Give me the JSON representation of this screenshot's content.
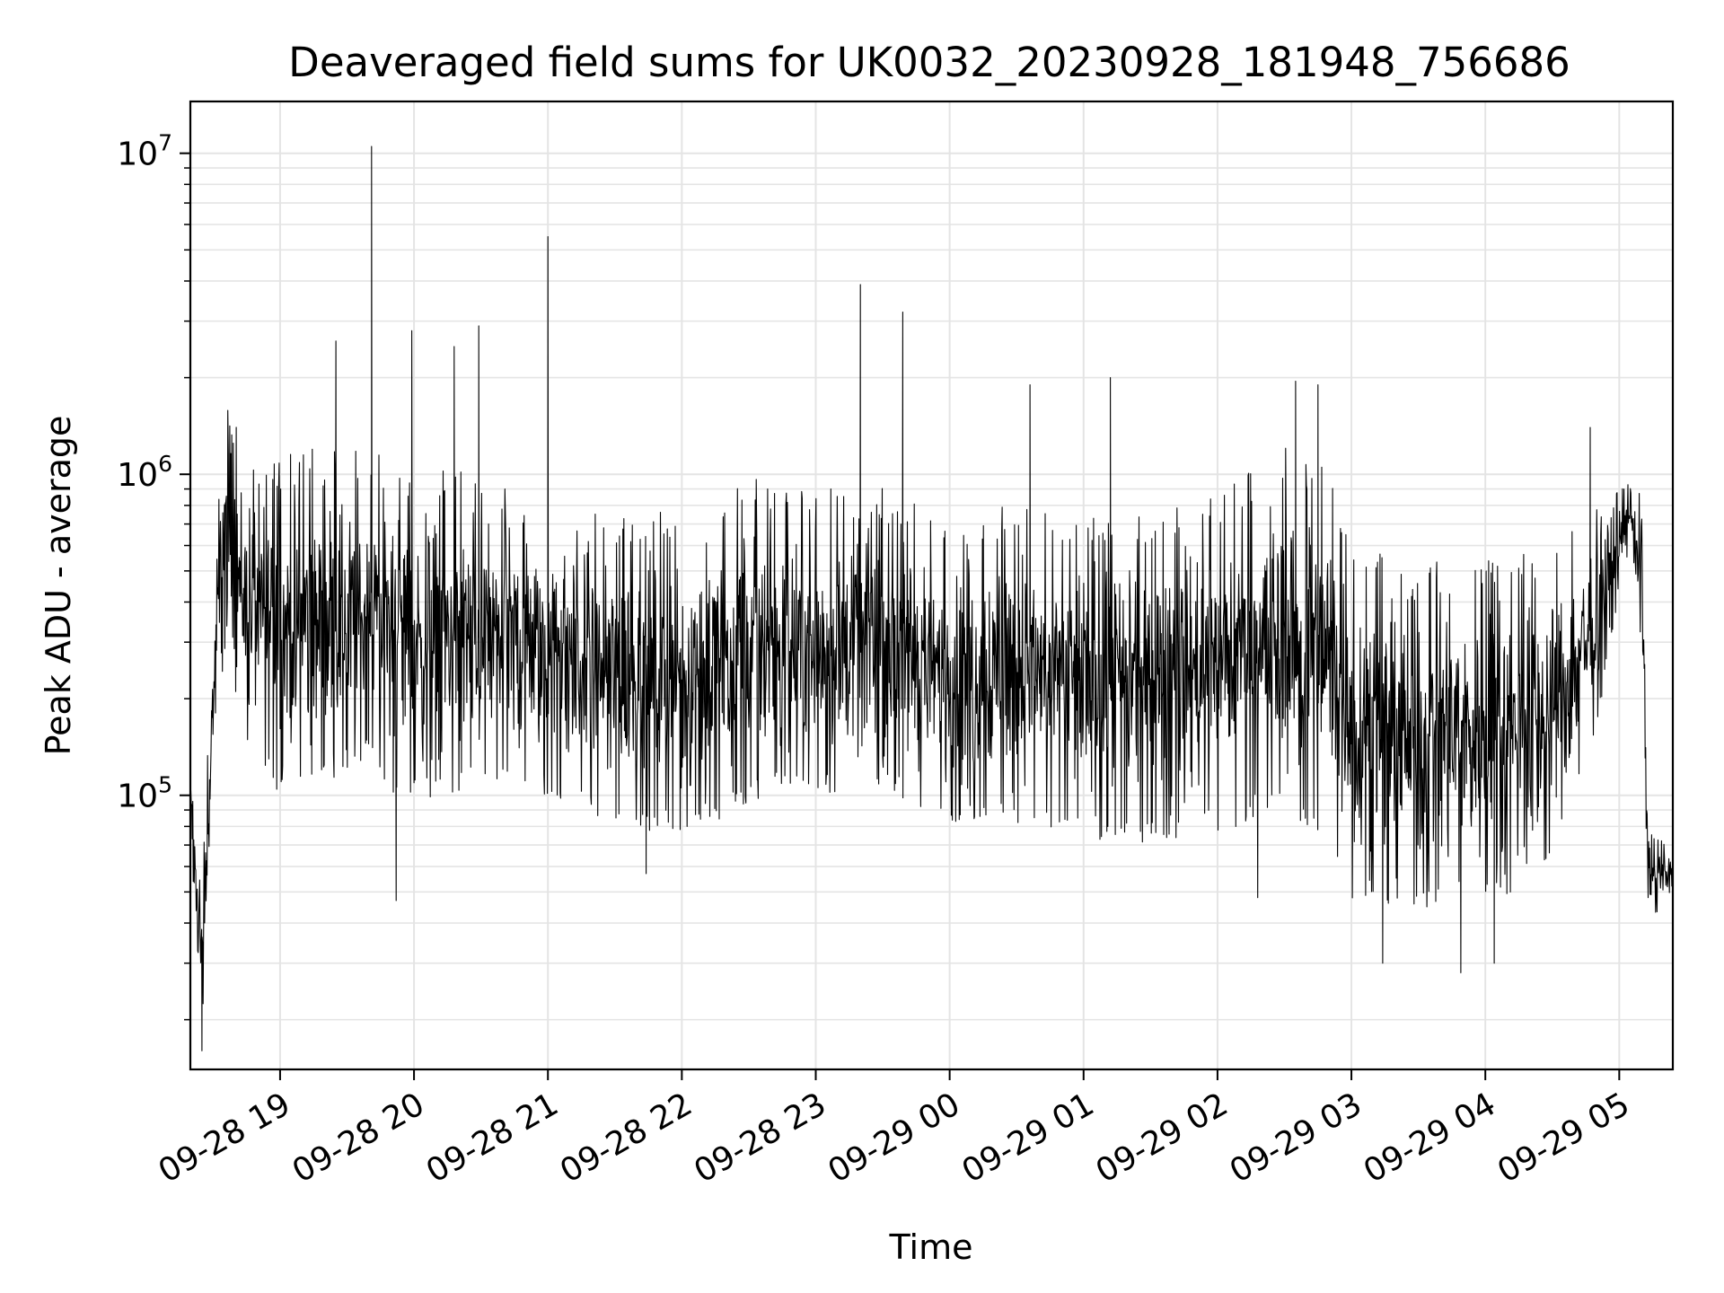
{
  "chart_data": {
    "type": "line",
    "title": "Deaveraged field sums for UK0032_20230928_181948_756686",
    "xlabel": "Time",
    "ylabel": "Peak ADU - average",
    "y_scale": "log",
    "ylim": [
      14000,
      14500000
    ],
    "xlim": [
      "2023-09-28 18:19:48",
      "2023-09-29 05:24:00"
    ],
    "grid": true,
    "legend": "none",
    "line_color": "#000000",
    "x_ticks": [
      {
        "value": "2023-09-28 19:00",
        "label": "09-28 19"
      },
      {
        "value": "2023-09-28 20:00",
        "label": "09-28 20"
      },
      {
        "value": "2023-09-28 21:00",
        "label": "09-28 21"
      },
      {
        "value": "2023-09-28 22:00",
        "label": "09-28 22"
      },
      {
        "value": "2023-09-28 23:00",
        "label": "09-28 23"
      },
      {
        "value": "2023-09-29 00:00",
        "label": "09-29 00"
      },
      {
        "value": "2023-09-29 01:00",
        "label": "09-29 01"
      },
      {
        "value": "2023-09-29 02:00",
        "label": "09-29 02"
      },
      {
        "value": "2023-09-29 03:00",
        "label": "09-29 03"
      },
      {
        "value": "2023-09-29 04:00",
        "label": "09-29 04"
      },
      {
        "value": "2023-09-29 05:00",
        "label": "09-29 05"
      }
    ],
    "y_ticks": [
      {
        "value": 100000,
        "base": "10",
        "exp": "5"
      },
      {
        "value": 1000000,
        "base": "10",
        "exp": "6"
      },
      {
        "value": 10000000,
        "base": "10",
        "exp": "7"
      }
    ],
    "envelope": [
      {
        "t": "2023-09-28 18:20",
        "low": 70000,
        "high": 130000
      },
      {
        "t": "2023-09-28 18:25",
        "low": 16000,
        "high": 50000
      },
      {
        "t": "2023-09-28 18:30",
        "low": 100000,
        "high": 400000
      },
      {
        "t": "2023-09-28 18:35",
        "low": 250000,
        "high": 1900000
      },
      {
        "t": "2023-09-28 18:45",
        "low": 120000,
        "high": 1300000
      },
      {
        "t": "2023-09-28 19:00",
        "low": 80000,
        "high": 1300000
      },
      {
        "t": "2023-09-28 19:30",
        "low": 100000,
        "high": 1400000
      },
      {
        "t": "2023-09-28 20:00",
        "low": 80000,
        "high": 1200000
      },
      {
        "t": "2023-09-28 20:30",
        "low": 90000,
        "high": 1100000
      },
      {
        "t": "2023-09-28 21:00",
        "low": 85000,
        "high": 900000
      },
      {
        "t": "2023-09-28 21:30",
        "low": 70000,
        "high": 800000
      },
      {
        "t": "2023-09-28 22:00",
        "low": 60000,
        "high": 900000
      },
      {
        "t": "2023-09-28 22:30",
        "low": 80000,
        "high": 1100000
      },
      {
        "t": "2023-09-28 23:00",
        "low": 85000,
        "high": 1000000
      },
      {
        "t": "2023-09-28 23:30",
        "low": 90000,
        "high": 1000000
      },
      {
        "t": "2023-09-29 00:00",
        "low": 70000,
        "high": 800000
      },
      {
        "t": "2023-09-29 00:30",
        "low": 70000,
        "high": 900000
      },
      {
        "t": "2023-09-29 01:00",
        "low": 60000,
        "high": 800000
      },
      {
        "t": "2023-09-29 01:30",
        "low": 60000,
        "high": 900000
      },
      {
        "t": "2023-09-29 02:00",
        "low": 65000,
        "high": 1000000
      },
      {
        "t": "2023-09-29 02:30",
        "low": 70000,
        "high": 1400000
      },
      {
        "t": "2023-09-29 02:50",
        "low": 60000,
        "high": 1200000
      },
      {
        "t": "2023-09-29 03:00",
        "low": 40000,
        "high": 700000
      },
      {
        "t": "2023-09-29 03:30",
        "low": 35000,
        "high": 600000
      },
      {
        "t": "2023-09-29 04:00",
        "low": 40000,
        "high": 600000
      },
      {
        "t": "2023-09-29 04:30",
        "low": 45000,
        "high": 700000
      },
      {
        "t": "2023-09-29 04:50",
        "low": 150000,
        "high": 900000
      },
      {
        "t": "2023-09-29 05:05",
        "low": 600000,
        "high": 1000000
      },
      {
        "t": "2023-09-29 05:10",
        "low": 250000,
        "high": 900000
      },
      {
        "t": "2023-09-29 05:13",
        "low": 40000,
        "high": 80000
      },
      {
        "t": "2023-09-29 05:24",
        "low": 45000,
        "high": 70000
      }
    ],
    "spikes": [
      {
        "t": "2023-09-28 19:25",
        "value": 2600000
      },
      {
        "t": "2023-09-28 19:41",
        "value": 10500000
      },
      {
        "t": "2023-09-28 19:59",
        "value": 2800000
      },
      {
        "t": "2023-09-28 20:18",
        "value": 2500000
      },
      {
        "t": "2023-09-28 20:29",
        "value": 2900000
      },
      {
        "t": "2023-09-28 21:00",
        "value": 5500000
      },
      {
        "t": "2023-09-28 23:20",
        "value": 3900000
      },
      {
        "t": "2023-09-28 23:39",
        "value": 3200000
      },
      {
        "t": "2023-09-29 00:36",
        "value": 1900000
      },
      {
        "t": "2023-09-29 01:12",
        "value": 2000000
      },
      {
        "t": "2023-09-29 02:35",
        "value": 1950000
      },
      {
        "t": "2023-09-29 02:45",
        "value": 1900000
      },
      {
        "t": "2023-09-29 04:47",
        "value": 1400000
      }
    ],
    "dips": [
      {
        "t": "2023-09-28 18:25",
        "value": 16000
      },
      {
        "t": "2023-09-28 19:52",
        "value": 47000
      },
      {
        "t": "2023-09-28 21:44",
        "value": 57000
      },
      {
        "t": "2023-09-29 02:18",
        "value": 48000
      },
      {
        "t": "2023-09-29 03:14",
        "value": 30000
      },
      {
        "t": "2023-09-29 03:49",
        "value": 28000
      },
      {
        "t": "2023-09-29 04:04",
        "value": 30000
      }
    ]
  }
}
